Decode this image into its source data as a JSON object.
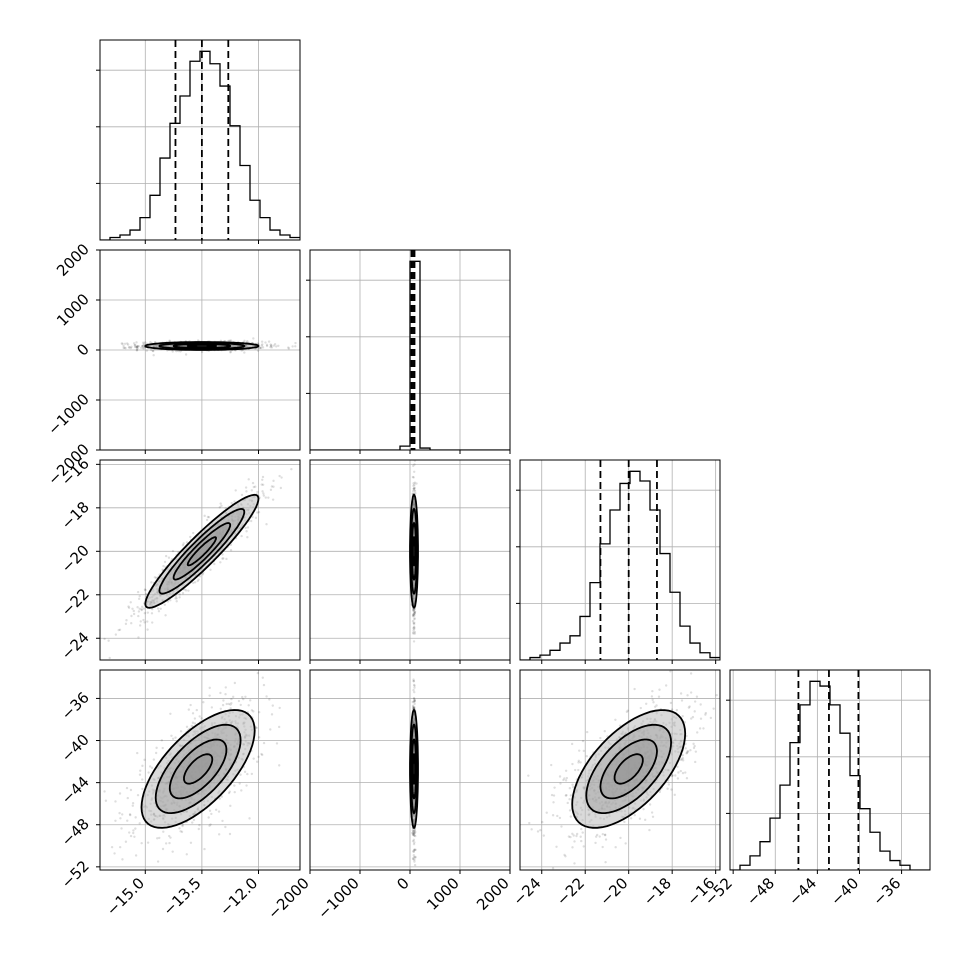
{
  "chart_data": {
    "type": "corner",
    "grid": true,
    "parameters": [
      {
        "key": "p1",
        "range": [
          -16.2,
          -10.9
        ],
        "ticks": [
          -15.0,
          -13.5,
          -12.0
        ],
        "tick_labels": [
          "−15.0",
          "−13.5",
          "−12.0"
        ],
        "median": -13.5,
        "quantiles": [
          -14.2,
          -12.8
        ],
        "histogram": {
          "edges_start": -16.2,
          "bin_width": 0.265,
          "counts": [
            0,
            1,
            2,
            4,
            9,
            18,
            33,
            47,
            58,
            72,
            76,
            71,
            62,
            46,
            30,
            16,
            9,
            4,
            2,
            1
          ]
        }
      },
      {
        "key": "p2",
        "range": [
          -2000,
          2000
        ],
        "ticks": [
          -2000,
          -1000,
          0,
          1000,
          2000
        ],
        "tick_labels": [
          "−2000",
          "−1000",
          "0",
          "1000",
          "2000"
        ],
        "median": 60,
        "quantiles": [
          30,
          90
        ],
        "histogram": {
          "edges_start": -2000,
          "bin_width": 200,
          "counts": [
            0,
            0,
            0,
            0,
            0,
            0,
            0,
            0,
            0,
            2,
            98,
            1,
            0,
            0,
            0,
            0,
            0,
            0,
            0,
            0
          ]
        }
      },
      {
        "key": "p3",
        "range": [
          -25,
          -15.8
        ],
        "ticks": [
          -24,
          -22,
          -20,
          -18,
          -16
        ],
        "tick_labels": [
          "−24",
          "−22",
          "−20",
          "−18",
          "−16"
        ],
        "median": -20.0,
        "quantiles": [
          -21.3,
          -18.7
        ],
        "histogram": {
          "edges_start": -25,
          "bin_width": 0.46,
          "counts": [
            0,
            1,
            2,
            4,
            7,
            10,
            18,
            32,
            48,
            62,
            73,
            78,
            74,
            62,
            44,
            28,
            14,
            7,
            3,
            1
          ]
        }
      },
      {
        "key": "p4",
        "range": [
          -52.3,
          -33.3
        ],
        "ticks": [
          -52,
          -48,
          -44,
          -40,
          -36
        ],
        "tick_labels": [
          "−52",
          "−48",
          "−44",
          "−40",
          "−36"
        ],
        "median": -42.9,
        "quantiles": [
          -45.8,
          -40.1
        ],
        "histogram": {
          "edges_start": -52.3,
          "bin_width": 0.95,
          "counts": [
            0,
            1,
            3,
            6,
            11,
            18,
            27,
            35,
            40,
            39,
            35,
            29,
            20,
            13,
            8,
            4,
            2,
            1,
            0,
            0
          ]
        }
      }
    ],
    "pairs": [
      {
        "x": 0,
        "y": 1,
        "center": [
          -13.5,
          80
        ],
        "sigma": [
          0.75,
          40
        ],
        "corr": 0.0
      },
      {
        "x": 0,
        "y": 2,
        "center": [
          -13.5,
          -20.0
        ],
        "sigma": [
          0.75,
          1.3
        ],
        "corr": 0.93
      },
      {
        "x": 0,
        "y": 3,
        "center": [
          -13.6,
          -42.7
        ],
        "sigma": [
          0.75,
          2.8
        ],
        "corr": 0.65
      },
      {
        "x": 1,
        "y": 2,
        "center": [
          80,
          -20.0
        ],
        "sigma": [
          40,
          1.3
        ],
        "corr": 0.0
      },
      {
        "x": 1,
        "y": 3,
        "center": [
          80,
          -42.7
        ],
        "sigma": [
          40,
          2.8
        ],
        "corr": 0.0
      },
      {
        "x": 2,
        "y": 3,
        "center": [
          -20.0,
          -42.7
        ],
        "sigma": [
          1.3,
          2.8
        ],
        "corr": 0.6
      }
    ],
    "contour_levels_sigma": [
      0.5,
      1.0,
      1.5,
      2.0
    ]
  }
}
